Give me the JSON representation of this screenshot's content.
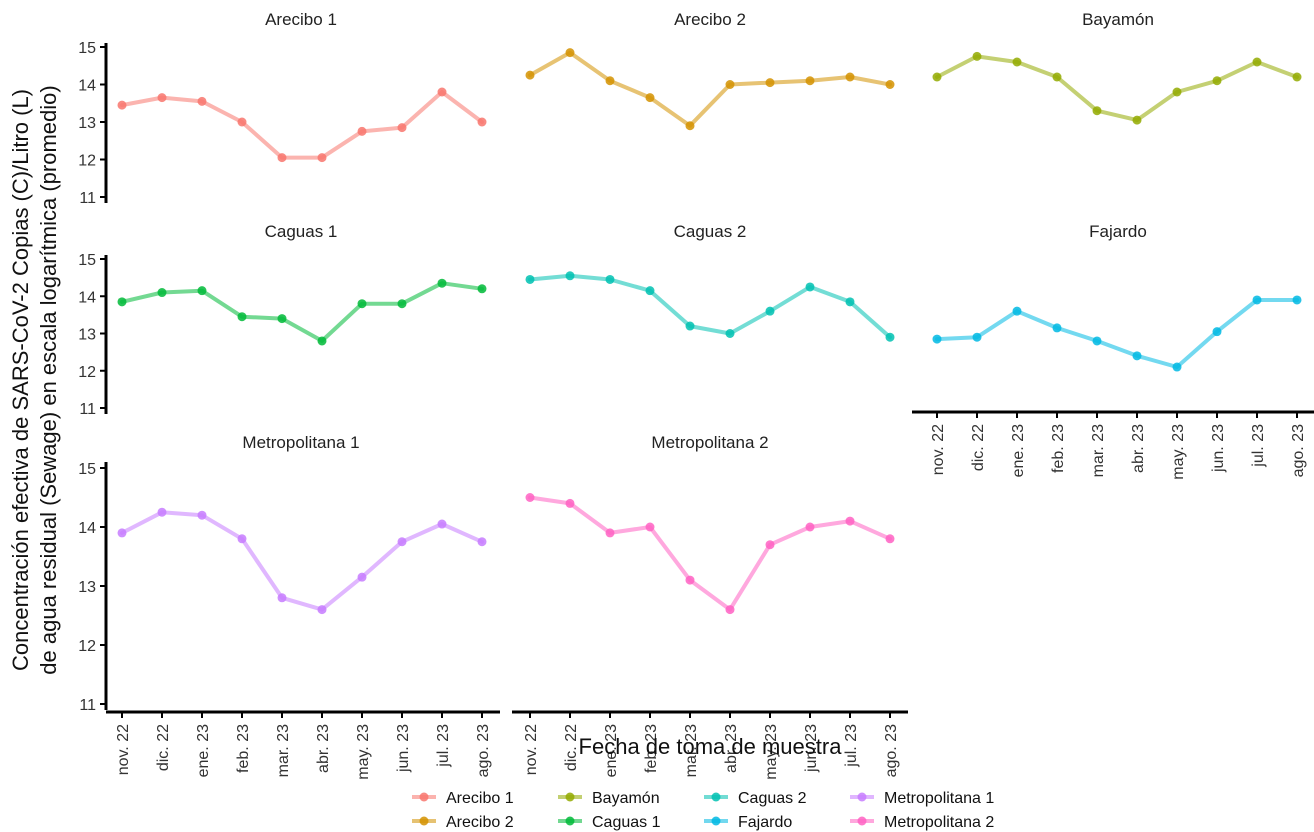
{
  "chart_data": {
    "type": "line",
    "xlabel": "Fecha de toma de muestra",
    "ylabel_lines": [
      "Concentración efectiva de SARS-CoV-2 Copias (C)/Litro (L)",
      "de agua residual (Sewage) en escala logarítmica (promedio)"
    ],
    "categories": [
      "nov. 22",
      "dic. 22",
      "ene. 23",
      "feb. 23",
      "mar. 23",
      "abr. 23",
      "may. 23",
      "jun. 23",
      "jul. 23",
      "ago. 23"
    ],
    "y_ticks": [
      11,
      12,
      13,
      14,
      15
    ],
    "ylim": [
      11,
      15
    ],
    "grid": false,
    "legend_position": "bottom",
    "facets": [
      {
        "name": "Arecibo 1",
        "color": "#F8766D",
        "values": [
          13.45,
          13.65,
          13.55,
          13.0,
          12.05,
          12.05,
          12.75,
          12.85,
          13.8,
          13.0
        ]
      },
      {
        "name": "Arecibo 2",
        "color": "#D39200",
        "values": [
          14.25,
          14.85,
          14.1,
          13.65,
          12.9,
          14.0,
          14.05,
          14.1,
          14.2,
          14.0
        ]
      },
      {
        "name": "Bayamón",
        "color": "#93AA00",
        "values": [
          14.2,
          14.75,
          14.6,
          14.2,
          13.3,
          13.05,
          13.8,
          14.1,
          14.6,
          14.2
        ]
      },
      {
        "name": "Caguas 1",
        "color": "#00BA38",
        "values": [
          13.85,
          14.1,
          14.15,
          13.45,
          13.4,
          12.8,
          13.8,
          13.8,
          14.35,
          14.2
        ]
      },
      {
        "name": "Caguas 2",
        "color": "#00C1B2",
        "values": [
          14.45,
          14.55,
          14.45,
          14.15,
          13.2,
          13.0,
          13.6,
          14.25,
          13.85,
          12.9
        ]
      },
      {
        "name": "Fajardo",
        "color": "#00B9E3",
        "values": [
          12.85,
          12.9,
          13.6,
          13.15,
          12.8,
          12.4,
          12.1,
          13.05,
          13.9,
          13.9
        ]
      },
      {
        "name": "Metropolitana 1",
        "color": "#C77CFF",
        "values": [
          13.9,
          14.25,
          14.2,
          13.8,
          12.8,
          12.6,
          13.15,
          13.75,
          14.05,
          13.75
        ]
      },
      {
        "name": "Metropolitana 2",
        "color": "#FF61C3",
        "values": [
          14.5,
          14.4,
          13.9,
          14.0,
          13.1,
          12.6,
          13.7,
          14.0,
          14.1,
          13.8
        ]
      }
    ],
    "legend_rows": [
      [
        "Arecibo 1",
        "Bayamón",
        "Caguas 2",
        "Metropolitana 1"
      ],
      [
        "Arecibo 2",
        "Caguas 1",
        "Fajardo",
        "Metropolitana 2"
      ]
    ]
  }
}
